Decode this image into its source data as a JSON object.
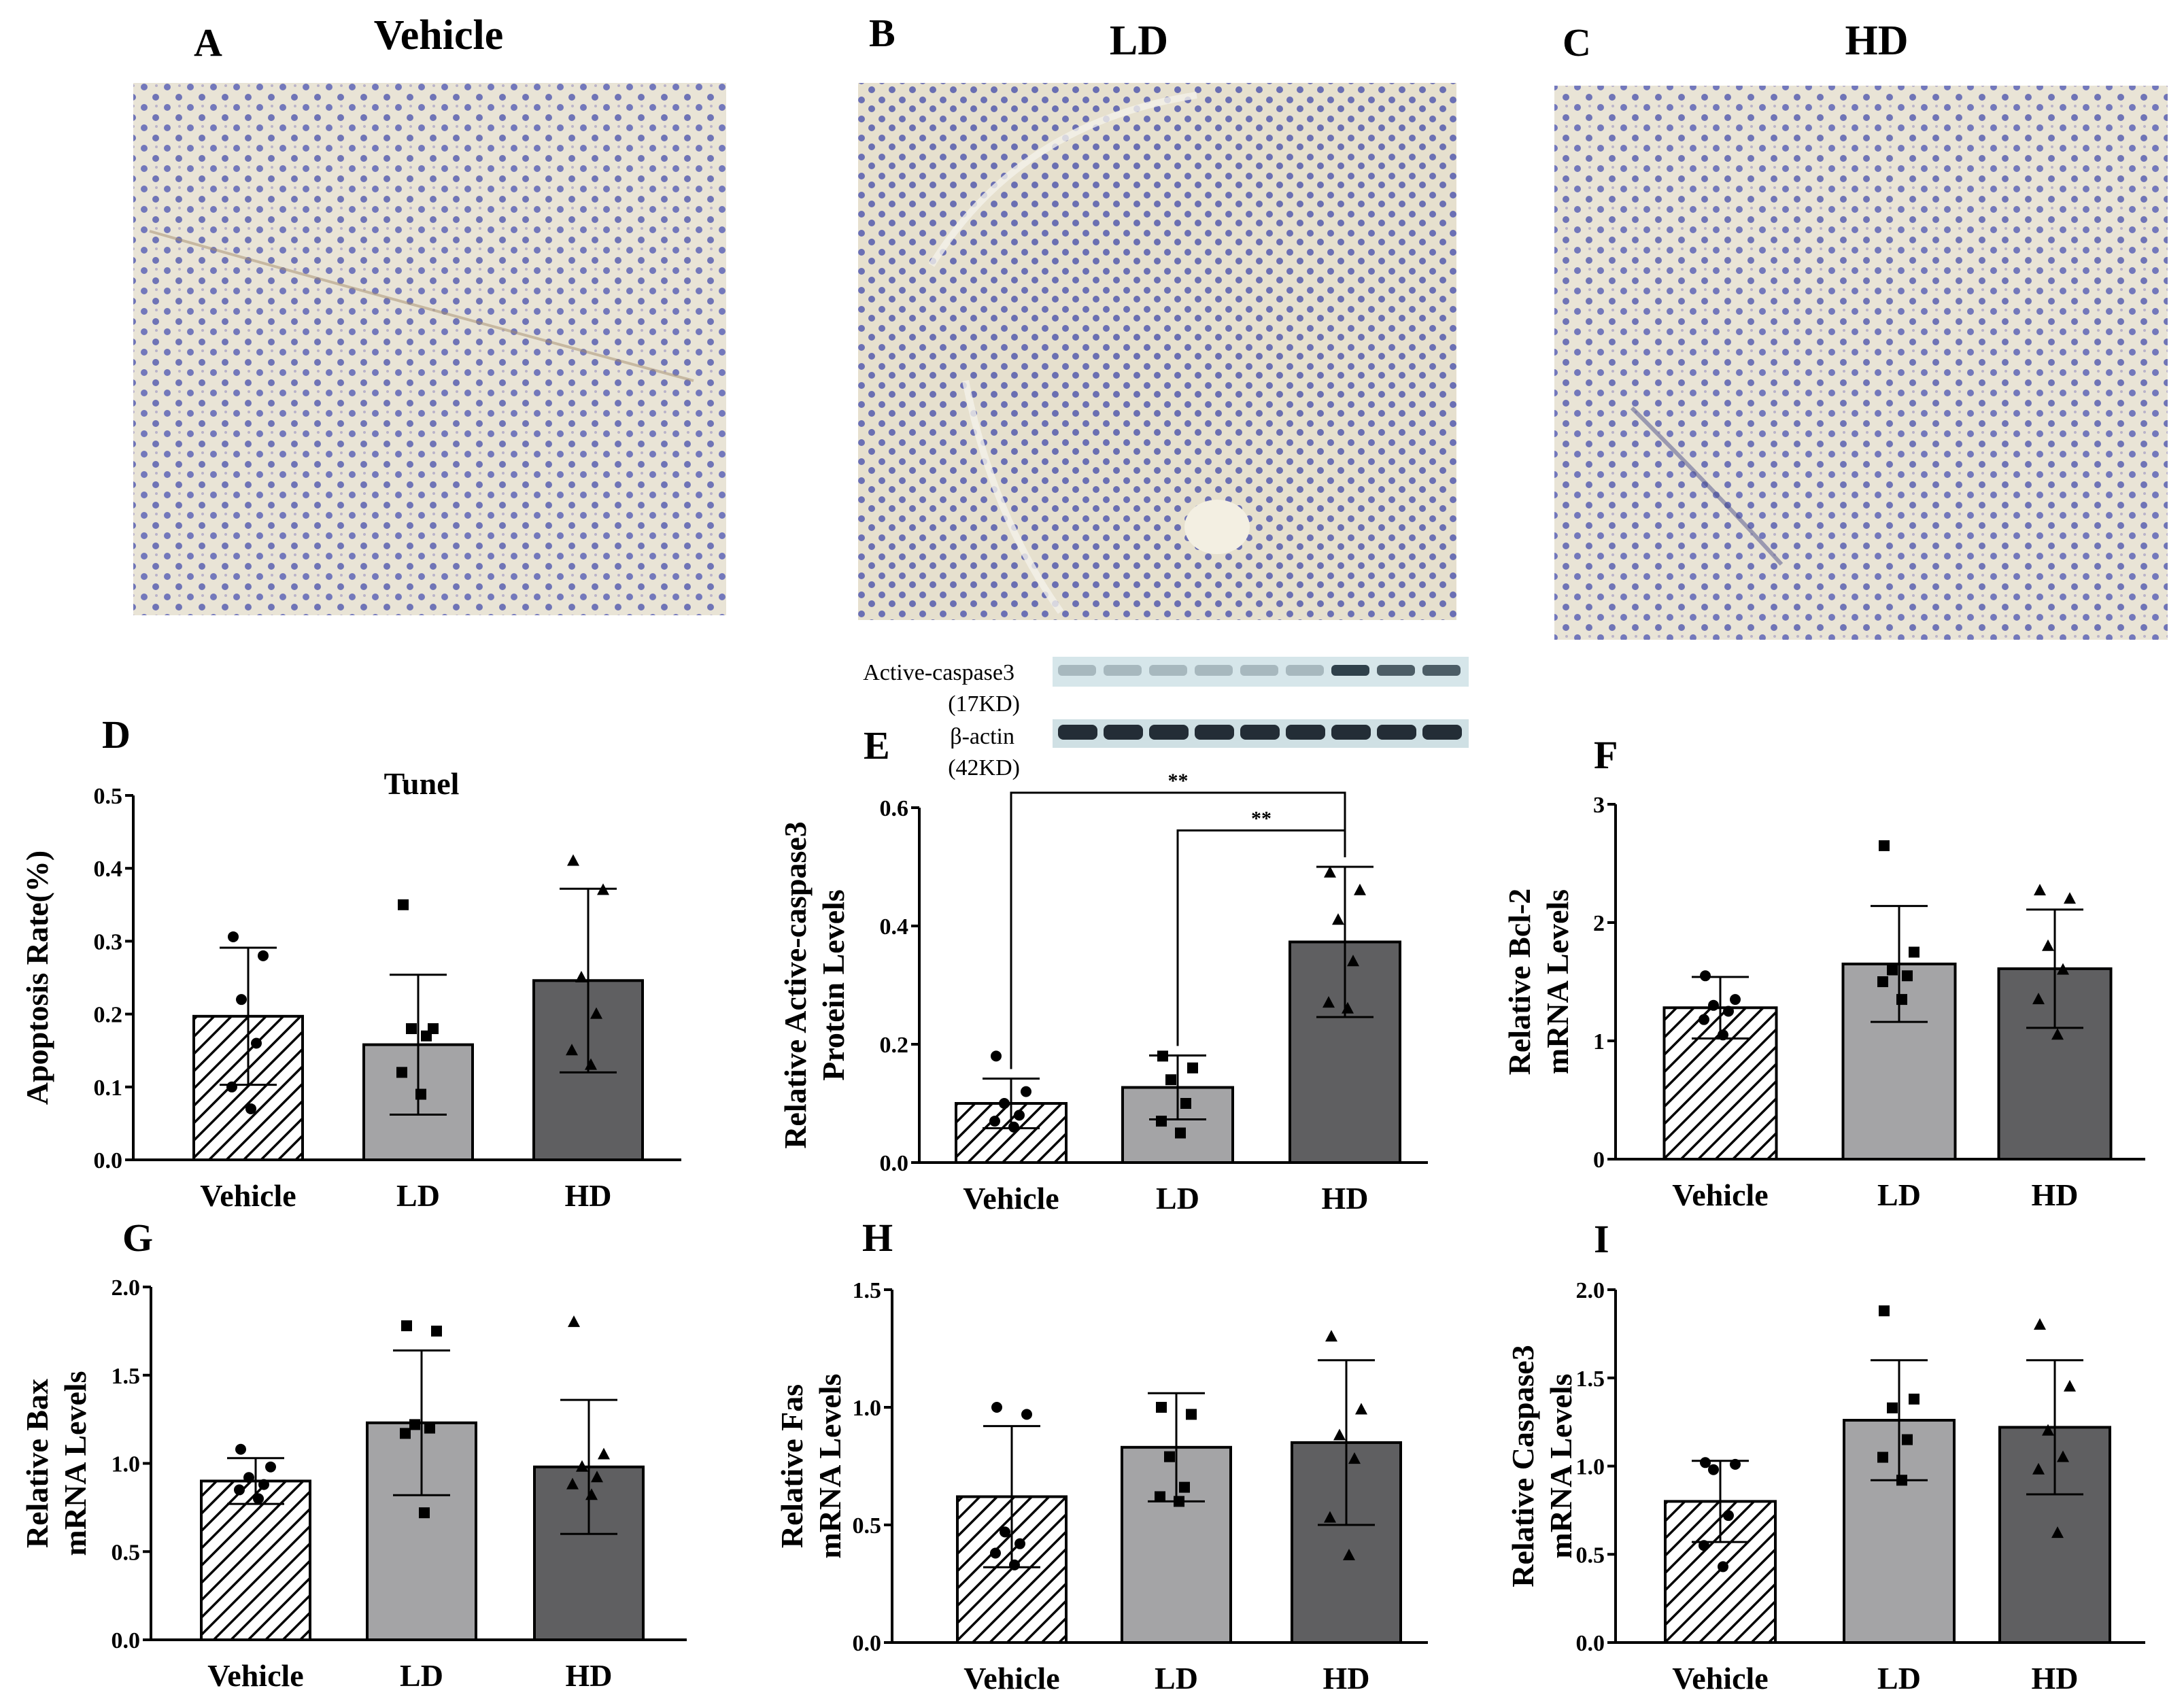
{
  "micrographs": [
    {
      "label": "A",
      "title": "Vehicle"
    },
    {
      "label": "B",
      "title": "LD"
    },
    {
      "label": "C",
      "title": "HD"
    }
  ],
  "blot": {
    "bands": [
      {
        "name": "Active-caspase3",
        "size": "(17KD)"
      },
      {
        "name": "β-actin",
        "size": "(42KD)"
      }
    ]
  },
  "colors": {
    "vehicle_hatch": "#000000",
    "ld": "#a4a4a6",
    "hd": "#5f5f61",
    "tissue_bg": "#e8e2d2",
    "cell": "#6b6fb7"
  },
  "chart_data": [
    {
      "panel": "D",
      "type": "bar",
      "title": "Tunel",
      "ylabel": "Apoptosis Rate(%)",
      "ylim": [
        0,
        0.5
      ],
      "yticks": [
        "0.0",
        "0.1",
        "0.2",
        "0.3",
        "0.4",
        "0.5"
      ],
      "categories": [
        "Vehicle",
        "LD",
        "HD"
      ],
      "values": [
        0.197,
        0.158,
        0.246
      ],
      "sd": [
        0.094,
        0.096,
        0.126
      ],
      "points": [
        [
          0.306,
          0.28,
          0.22,
          0.16,
          0.1,
          0.07
        ],
        [
          0.35,
          0.18,
          0.18,
          0.17,
          0.12,
          0.09
        ],
        [
          0.41,
          0.37,
          0.25,
          0.2,
          0.15,
          0.13
        ]
      ],
      "significance": []
    },
    {
      "panel": "E",
      "type": "bar",
      "title": "",
      "ylabel": "Relative Active-caspase3|Protein Levels",
      "ylim": [
        0,
        0.6
      ],
      "yticks": [
        "0.0",
        "0.2",
        "0.4",
        "0.6"
      ],
      "categories": [
        "Vehicle",
        "LD",
        "HD"
      ],
      "values": [
        0.1,
        0.127,
        0.373
      ],
      "sd": [
        0.042,
        0.054,
        0.127
      ],
      "points": [
        [
          0.18,
          0.12,
          0.1,
          0.08,
          0.07,
          0.06
        ],
        [
          0.18,
          0.16,
          0.14,
          0.1,
          0.07,
          0.05
        ],
        [
          0.49,
          0.46,
          0.41,
          0.34,
          0.27,
          0.26
        ]
      ],
      "significance": [
        {
          "from": 0,
          "to": 2,
          "label": "**",
          "y": 0.6
        },
        {
          "from": 1,
          "to": 2,
          "label": "**",
          "y": 0.55
        }
      ]
    },
    {
      "panel": "F",
      "type": "bar",
      "title": "",
      "ylabel": "Relative Bcl-2|mRNA Levels",
      "ylim": [
        0,
        3
      ],
      "yticks": [
        "0",
        "1",
        "2",
        "3"
      ],
      "categories": [
        "Vehicle",
        "LD",
        "HD"
      ],
      "values": [
        1.28,
        1.65,
        1.61
      ],
      "sd": [
        0.26,
        0.49,
        0.5
      ],
      "points": [
        [
          1.55,
          1.35,
          1.3,
          1.25,
          1.18,
          1.05
        ],
        [
          2.65,
          1.75,
          1.6,
          1.55,
          1.5,
          1.35
        ],
        [
          2.27,
          2.2,
          1.8,
          1.6,
          1.35,
          1.05
        ]
      ],
      "significance": []
    },
    {
      "panel": "G",
      "type": "bar",
      "title": "",
      "ylabel": "Relative Bax|mRNA Levels",
      "ylim": [
        0,
        2
      ],
      "yticks": [
        "0.0",
        "0.5",
        "1.0",
        "1.5",
        "2.0"
      ],
      "categories": [
        "Vehicle",
        "LD",
        "HD"
      ],
      "values": [
        0.9,
        1.23,
        0.98
      ],
      "sd": [
        0.13,
        0.41,
        0.38
      ],
      "points": [
        [
          1.08,
          0.98,
          0.92,
          0.88,
          0.85,
          0.8
        ],
        [
          1.78,
          1.75,
          1.22,
          1.2,
          1.17,
          0.72
        ],
        [
          1.8,
          1.05,
          0.98,
          0.92,
          0.88,
          0.82
        ]
      ],
      "significance": []
    },
    {
      "panel": "H",
      "type": "bar",
      "title": "",
      "ylabel": "Relative Fas|mRNA Levels",
      "ylim": [
        0,
        1.5
      ],
      "yticks": [
        "0.0",
        "0.5",
        "1.0",
        "1.5"
      ],
      "categories": [
        "Vehicle",
        "LD",
        "HD"
      ],
      "values": [
        0.62,
        0.83,
        0.85
      ],
      "sd": [
        0.3,
        0.23,
        0.35
      ],
      "points": [
        [
          1.0,
          0.97,
          0.47,
          0.42,
          0.38,
          0.33
        ],
        [
          1.0,
          0.97,
          0.79,
          0.66,
          0.62,
          0.6
        ],
        [
          1.3,
          0.99,
          0.88,
          0.78,
          0.53,
          0.37
        ]
      ],
      "significance": []
    },
    {
      "panel": "I",
      "type": "bar",
      "title": "",
      "ylabel": "Relative Caspase3|mRNA Levels",
      "ylim": [
        0,
        2
      ],
      "yticks": [
        "0.0",
        "0.5",
        "1.0",
        "1.5",
        "2.0"
      ],
      "categories": [
        "Vehicle",
        "LD",
        "HD"
      ],
      "values": [
        0.8,
        1.26,
        1.22
      ],
      "sd": [
        0.23,
        0.34,
        0.38
      ],
      "points": [
        [
          1.02,
          1.01,
          0.98,
          0.72,
          0.55,
          0.43
        ],
        [
          1.88,
          1.38,
          1.33,
          1.15,
          1.05,
          0.92
        ],
        [
          1.8,
          1.45,
          1.2,
          1.05,
          0.98,
          0.62
        ]
      ],
      "significance": []
    }
  ]
}
